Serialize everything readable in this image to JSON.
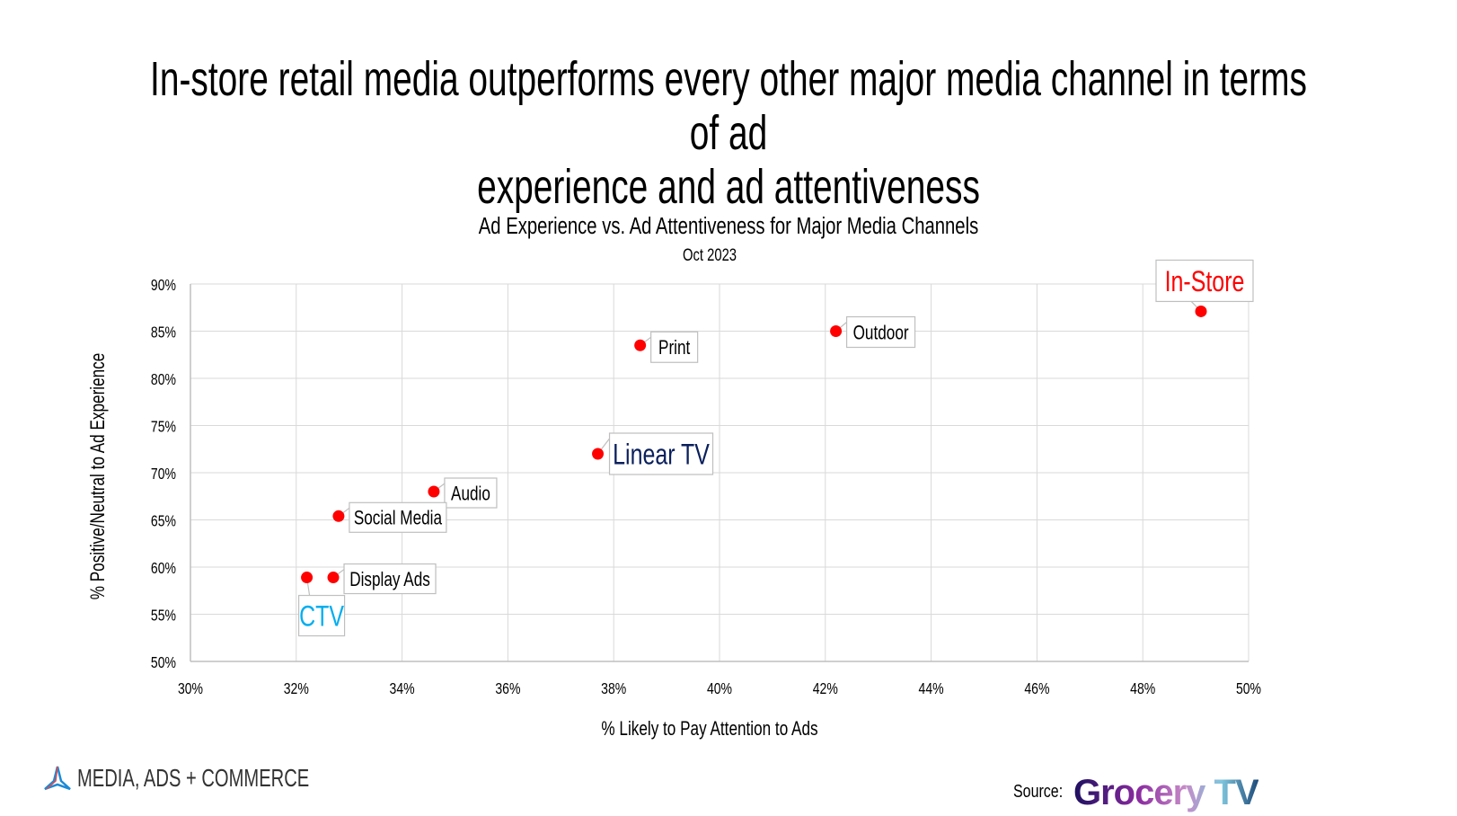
{
  "title": {
    "line1": "In-store retail media outperforms every other major media channel in terms of ad",
    "line2": "experience and ad attentiveness"
  },
  "footer": {
    "brand_left": "MEDIA, ADS + COMMERCE",
    "source_label": "Source:",
    "source_brand": "Grocery TV"
  },
  "chart_data": {
    "type": "scatter",
    "title": "Ad Experience vs. Ad Attentiveness for Major Media Channels",
    "subtitle": "Oct 2023",
    "xlabel": "% Likely to Pay Attention to Ads",
    "ylabel": "% Positive/Neutral to Ad Experience",
    "xlim": [
      30,
      50
    ],
    "ylim": [
      50,
      90
    ],
    "x_ticks": [
      "30%",
      "32%",
      "34%",
      "36%",
      "38%",
      "40%",
      "42%",
      "44%",
      "46%",
      "48%",
      "50%"
    ],
    "y_ticks": [
      "50%",
      "55%",
      "60%",
      "65%",
      "70%",
      "75%",
      "80%",
      "85%",
      "90%"
    ],
    "grid": true,
    "marker_color": "#ff0000",
    "points": [
      {
        "name": "In-Store",
        "x": 49.1,
        "y": 87.1,
        "label_color": "#ff0000",
        "emphasis": true
      },
      {
        "name": "Outdoor",
        "x": 42.2,
        "y": 85.0,
        "label_color": "#000000",
        "emphasis": false
      },
      {
        "name": "Print",
        "x": 38.5,
        "y": 83.5,
        "label_color": "#000000",
        "emphasis": false
      },
      {
        "name": "Linear TV",
        "x": 37.7,
        "y": 72.0,
        "label_color": "#0a1f5c",
        "emphasis": true
      },
      {
        "name": "Audio",
        "x": 34.6,
        "y": 68.0,
        "label_color": "#000000",
        "emphasis": false
      },
      {
        "name": "Social Media",
        "x": 32.8,
        "y": 65.4,
        "label_color": "#000000",
        "emphasis": false
      },
      {
        "name": "Display Ads",
        "x": 32.7,
        "y": 58.9,
        "label_color": "#000000",
        "emphasis": false
      },
      {
        "name": "CTV",
        "x": 32.2,
        "y": 58.9,
        "label_color": "#00aeef",
        "emphasis": true
      }
    ]
  }
}
